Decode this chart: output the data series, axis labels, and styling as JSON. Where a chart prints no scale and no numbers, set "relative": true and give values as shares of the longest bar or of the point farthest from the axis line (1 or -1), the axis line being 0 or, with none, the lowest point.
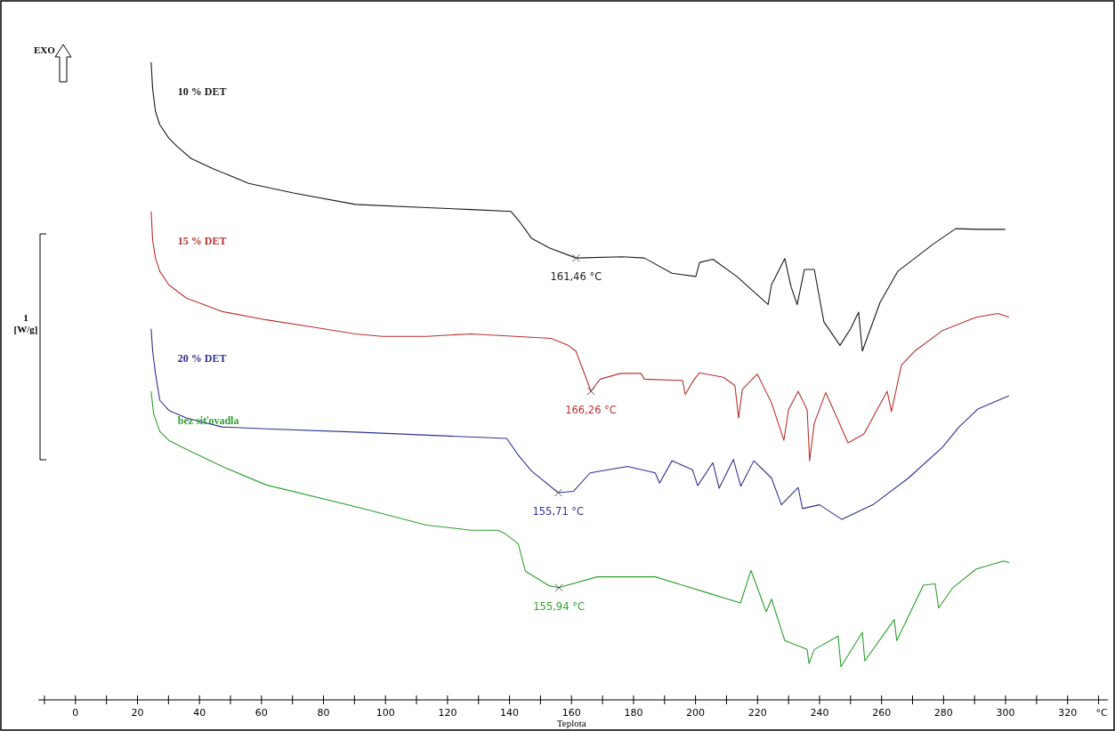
{
  "chart_data": {
    "type": "line",
    "relative": true,
    "xlabel": "Teplota",
    "xlim": [
      -12,
      333
    ],
    "xticks": [
      0,
      {
        "value": -10,
        "label": null
      },
      {
        "value": 10,
        "label": null
      },
      20,
      {
        "value": 30,
        "label": null
      },
      40,
      {
        "value": 50,
        "label": null
      },
      60,
      {
        "value": 70,
        "label": null
      },
      80,
      {
        "value": 90,
        "label": null
      },
      100,
      {
        "value": 110,
        "label": null
      },
      120,
      {
        "value": 130,
        "label": null
      },
      140,
      {
        "value": 150,
        "label": null
      },
      160,
      {
        "value": 170,
        "label": null
      },
      180,
      {
        "value": 190,
        "label": null
      },
      200,
      {
        "value": 210,
        "label": null
      },
      220,
      {
        "value": 230,
        "label": null
      },
      240,
      {
        "value": 250,
        "label": null
      },
      260,
      {
        "value": 270,
        "label": null
      },
      280,
      {
        "value": 290,
        "label": null
      },
      300,
      {
        "value": 310,
        "label": null
      },
      320,
      {
        "value": 330,
        "label": null
      }
    ],
    "grid": false,
    "legend": false,
    "marker": "none",
    "line_style": "solid",
    "series": [
      {
        "name": "10 % DET",
        "color": "#1a1a1a",
        "x": [
          24.4,
          24.9,
          25.8,
          27.2,
          30.1,
          33.0,
          37.3,
          44.4,
          55.9,
          70.3,
          90.3,
          113.3,
          127.6,
          140.5,
          143.4,
          147.1,
          152.8,
          161.5,
          176.3,
          183.5,
          192.4,
          200.1,
          201.3,
          205.6,
          213.3,
          223.4,
          224.5,
          228.8,
          230.8,
          232.8,
          235.1,
          238.3,
          241.4,
          246.6,
          250.0,
          252.6,
          253.8,
          259.5,
          265.2,
          276.7,
          283.9,
          291.0,
          299.9
        ],
        "values": [
          1.0,
          0.958,
          0.923,
          0.902,
          0.881,
          0.867,
          0.849,
          0.833,
          0.81,
          0.795,
          0.777,
          0.772,
          0.769,
          0.766,
          0.749,
          0.724,
          0.709,
          0.693,
          0.695,
          0.693,
          0.669,
          0.664,
          0.686,
          0.691,
          0.664,
          0.62,
          0.651,
          0.692,
          0.648,
          0.62,
          0.675,
          0.675,
          0.593,
          0.556,
          0.582,
          0.608,
          0.547,
          0.623,
          0.672,
          0.715,
          0.739,
          0.738,
          0.738
        ]
      },
      {
        "name": "15 % DET",
        "color": "#b8312f",
        "x": [
          24.4,
          24.9,
          25.8,
          27.2,
          30.1,
          35.8,
          47.3,
          61.6,
          76.0,
          90.3,
          98.9,
          113.3,
          127.6,
          141.9,
          153.4,
          158.9,
          161.4,
          166.3,
          169.2,
          175.8,
          182.4,
          183.5,
          195.8,
          196.7,
          199.6,
          201.3,
          209.0,
          212.7,
          213.9,
          215.1,
          219.9,
          224.5,
          228.5,
          230.0,
          233.1,
          236.0,
          236.8,
          238.3,
          242.0,
          245.4,
          249.2,
          254.3,
          261.8,
          263.2,
          266.4,
          270.7,
          279.6,
          290.5,
          297.6,
          301.1
        ],
        "values": [
          0.766,
          0.721,
          0.693,
          0.672,
          0.651,
          0.63,
          0.609,
          0.596,
          0.585,
          0.574,
          0.57,
          0.57,
          0.574,
          0.57,
          0.567,
          0.556,
          0.547,
          0.484,
          0.503,
          0.512,
          0.512,
          0.503,
          0.501,
          0.479,
          0.503,
          0.513,
          0.506,
          0.493,
          0.442,
          0.487,
          0.511,
          0.466,
          0.407,
          0.455,
          0.484,
          0.455,
          0.375,
          0.434,
          0.482,
          0.445,
          0.403,
          0.417,
          0.484,
          0.452,
          0.525,
          0.547,
          0.579,
          0.6,
          0.606,
          0.6
        ]
      },
      {
        "name": "20 % DET",
        "color": "#2e3192",
        "x": [
          24.4,
          24.9,
          25.8,
          27.2,
          30.1,
          35.8,
          47.3,
          61.6,
          90.3,
          119.0,
          139.1,
          142.8,
          147.1,
          155.7,
          160.6,
          166.0,
          178.1,
          187.0,
          188.4,
          192.4,
          199.0,
          200.7,
          205.6,
          207.6,
          212.2,
          214.6,
          218.8,
          224.5,
          227.7,
          233.1,
          234.5,
          240.0,
          247.2,
          257.5,
          268.7,
          279.6,
          285.0,
          291.0,
          301.1
        ],
        "values": [
          0.582,
          0.547,
          0.512,
          0.47,
          0.454,
          0.442,
          0.428,
          0.425,
          0.42,
          0.414,
          0.41,
          0.384,
          0.359,
          0.325,
          0.327,
          0.356,
          0.366,
          0.356,
          0.34,
          0.375,
          0.361,
          0.336,
          0.372,
          0.332,
          0.377,
          0.335,
          0.375,
          0.348,
          0.306,
          0.333,
          0.3,
          0.306,
          0.283,
          0.307,
          0.348,
          0.396,
          0.428,
          0.456,
          0.477
        ]
      },
      {
        "name": "bez siťovadla",
        "color": "#2ca02c",
        "x": [
          24.4,
          25.2,
          27.2,
          30.1,
          35.8,
          47.3,
          61.6,
          90.3,
          113.3,
          127.6,
          136.2,
          138.5,
          142.8,
          145.1,
          152.8,
          155.9,
          168.3,
          187.0,
          202.4,
          214.5,
          217.9,
          222.8,
          224.5,
          228.8,
          236.0,
          236.6,
          238.3,
          246.0,
          246.9,
          253.8,
          254.6,
          264.1,
          264.9,
          273.5,
          277.3,
          278.4,
          283.0,
          290.5,
          299.4,
          301.1
        ],
        "values": [
          0.484,
          0.449,
          0.421,
          0.407,
          0.393,
          0.366,
          0.337,
          0.303,
          0.274,
          0.266,
          0.266,
          0.261,
          0.245,
          0.202,
          0.179,
          0.176,
          0.193,
          0.193,
          0.17,
          0.152,
          0.203,
          0.138,
          0.158,
          0.093,
          0.079,
          0.057,
          0.079,
          0.1,
          0.052,
          0.106,
          0.061,
          0.126,
          0.093,
          0.18,
          0.182,
          0.144,
          0.176,
          0.205,
          0.218,
          0.215
        ]
      }
    ],
    "annotations": [
      "EXO",
      "1 [W/g]",
      "°C",
      {
        "text": "161,46 °C",
        "x": 161.46,
        "y": 0.693
      },
      {
        "text": "166,26 °C",
        "x": 166.26,
        "y": 0.484
      },
      {
        "text": "155,71 °C",
        "x": 155.71,
        "y": 0.325
      },
      {
        "text": "155,94 °C",
        "x": 155.94,
        "y": 0.176
      }
    ]
  }
}
